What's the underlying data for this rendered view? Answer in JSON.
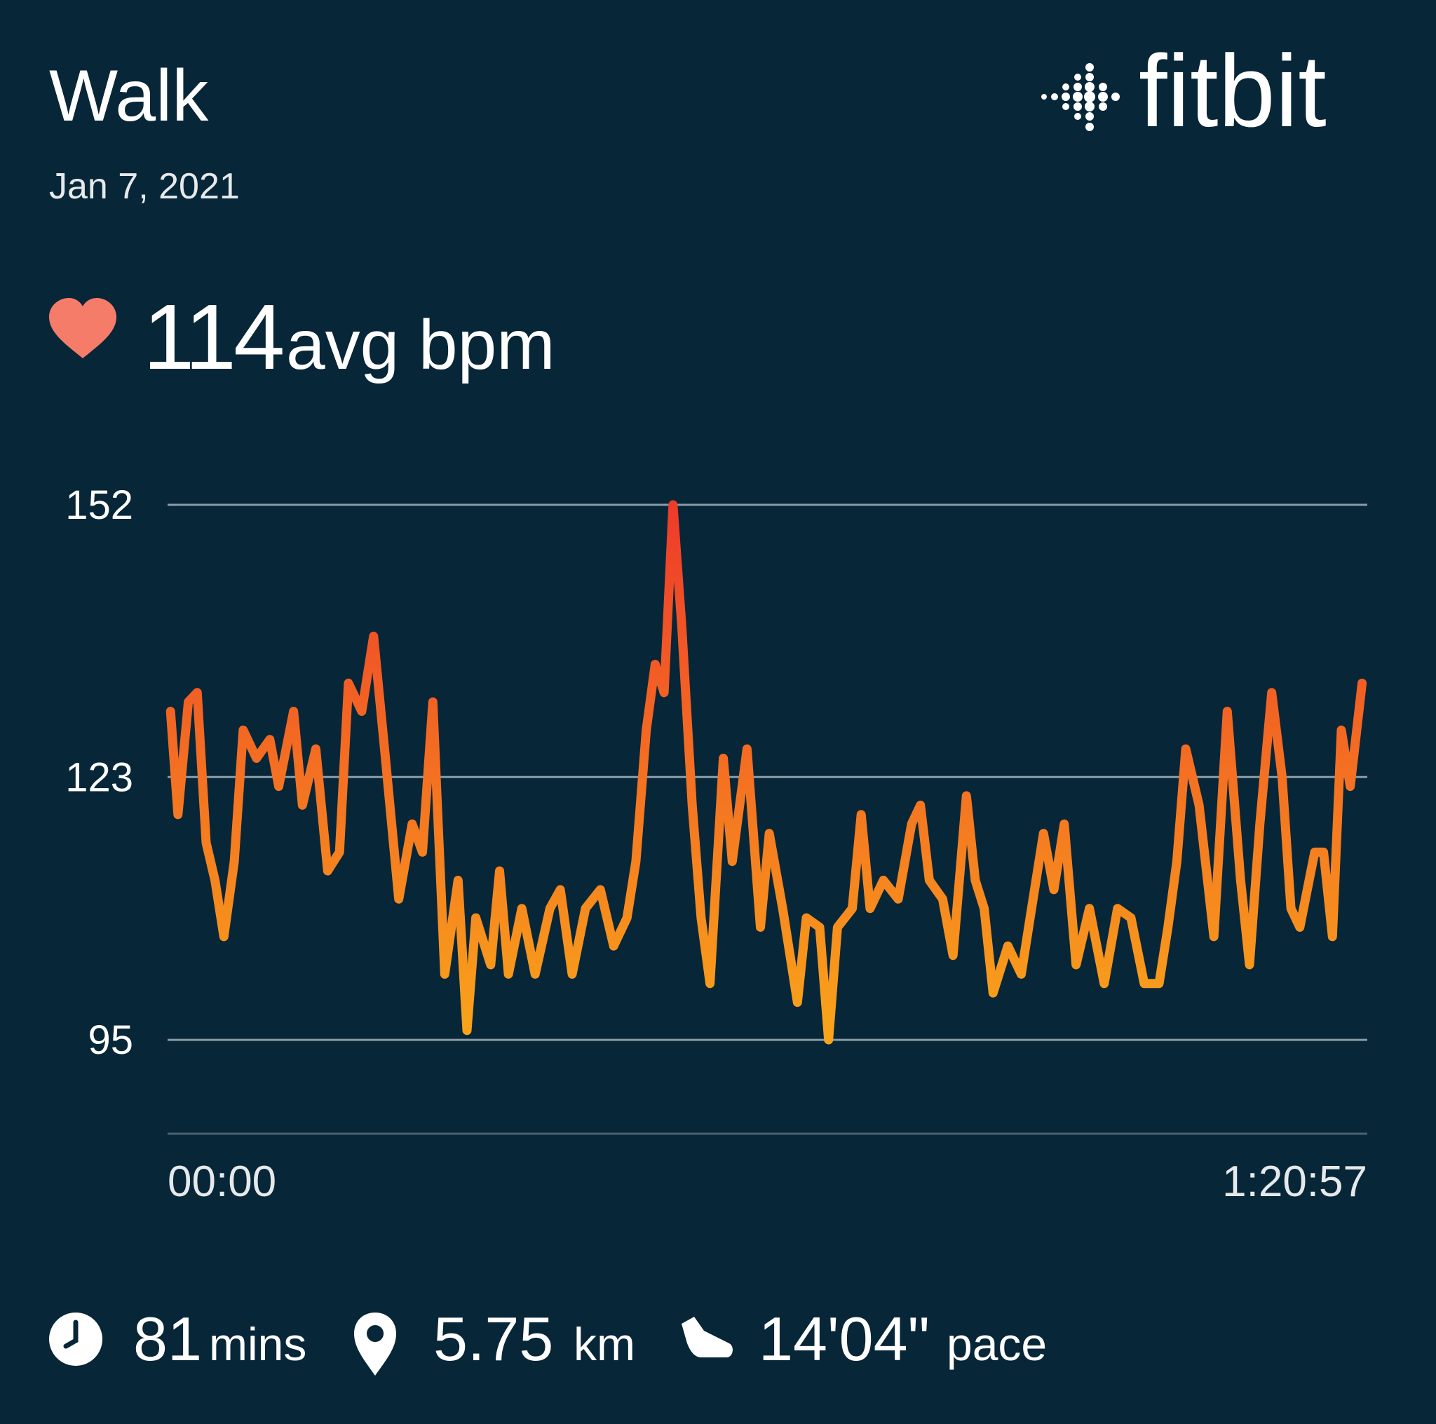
{
  "header": {
    "title": "Walk",
    "date": "Jan 7, 2021",
    "logo": "fitbit"
  },
  "summary": {
    "value": "114",
    "unit": "avg bpm"
  },
  "stats": [
    {
      "value": "81",
      "unit": "mins"
    },
    {
      "value": "5.75",
      "unit": "km"
    },
    {
      "value": "14'04\"",
      "unit": "pace"
    }
  ],
  "chart_data": {
    "type": "line",
    "x": [
      0.2,
      0.7,
      1.4,
      2.0,
      2.6,
      3.2,
      3.8,
      4.5,
      5.1,
      6.0,
      6.9,
      7.5,
      8.5,
      9.1,
      10.0,
      10.8,
      11.6,
      12.2,
      13.1,
      13.9,
      14.7,
      15.6,
      16.5,
      17.2,
      17.9,
      18.7,
      19.6,
      20.2,
      20.8,
      21.8,
      22.4,
      23.0,
      23.9,
      24.8,
      25.8,
      26.5,
      27.3,
      28.2,
      29.2,
      30.1,
      31.0,
      31.6,
      32.3,
      32.9,
      33.5,
      34.1,
      34.7,
      35.4,
      36.0,
      36.6,
      37.5,
      38.1,
      39.1,
      40.0,
      40.6,
      41.5,
      42.5,
      43.1,
      44.0,
      44.6,
      45.2,
      46.2,
      46.8,
      47.4,
      48.3,
      49.3,
      50.2,
      50.8,
      51.4,
      52.3,
      53.0,
      53.9,
      54.5,
      55.1,
      55.7,
      56.7,
      57.6,
      58.2,
      59.1,
      59.8,
      60.5,
      61.3,
      62.2,
      63.2,
      64.1,
      65.0,
      65.9,
      66.9,
      67.5,
      68.1,
      68.7,
      69.6,
      70.6,
      71.5,
      72.4,
      73.0,
      73.7,
      74.5,
      75.2,
      75.8,
      76.4,
      77.4,
      78.0,
      78.6,
      79.2,
      79.8,
      80.6
    ],
    "values": [
      130,
      119,
      131,
      132,
      116,
      112,
      106,
      114,
      128,
      125,
      127,
      122,
      130,
      120,
      126,
      113,
      115,
      133,
      130,
      138,
      125,
      110,
      118,
      115,
      131,
      102,
      112,
      96,
      108,
      103,
      113,
      102,
      109,
      102,
      109,
      111,
      102,
      109,
      111,
      105,
      108,
      114,
      128,
      135,
      132,
      152,
      139,
      120,
      108,
      101,
      125,
      114,
      126,
      107,
      117,
      109,
      99,
      108,
      107,
      95,
      107,
      109,
      119,
      109,
      112,
      110,
      118,
      120,
      112,
      110,
      104,
      121,
      112,
      109,
      100,
      105,
      102,
      108,
      117,
      111,
      118,
      103,
      109,
      101,
      109,
      108,
      101,
      101,
      107,
      114,
      126,
      120,
      106,
      130,
      112,
      103,
      118,
      132,
      123,
      109,
      107,
      115,
      115,
      106,
      128,
      122,
      133
    ],
    "xlim": [
      0,
      80.95
    ],
    "xticks": [
      {
        "value": 0,
        "label": "00:00"
      },
      {
        "value": 80.95,
        "label": "1:20:57"
      }
    ],
    "ylim": [
      85,
      152
    ],
    "yticks": [
      95,
      123,
      152
    ],
    "grid": true,
    "colors": [
      "#f9a51a",
      "#ee3b2a"
    ]
  }
}
